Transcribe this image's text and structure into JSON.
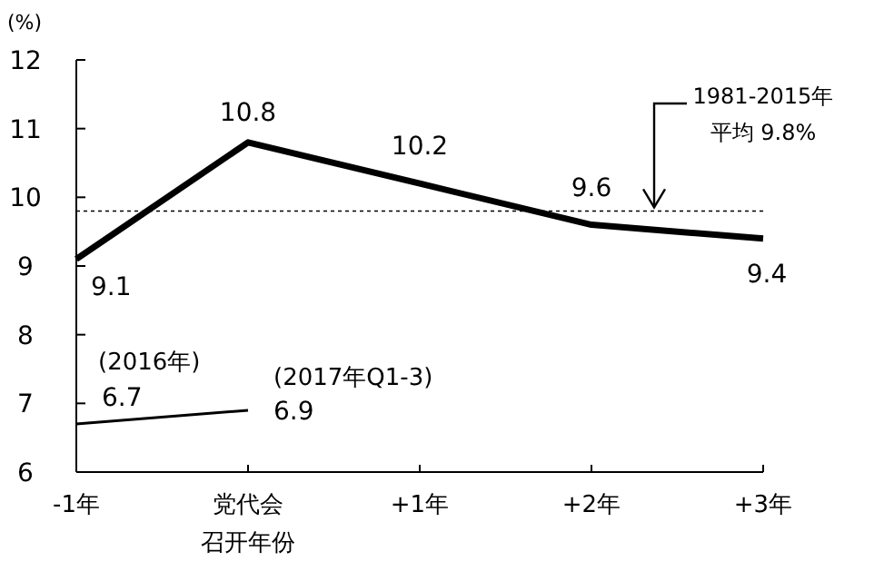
{
  "chart_data": {
    "type": "line",
    "ylabel": "(%)",
    "categories": [
      "-1年",
      "党代会召开年份",
      "+1年",
      "+2年",
      "+3年"
    ],
    "series": [
      {
        "color": "#000000",
        "values": [
          9.1,
          10.8,
          10.2,
          9.6,
          9.4
        ]
      },
      {
        "color": "#000000",
        "values": [
          6.7,
          6.9,
          null,
          null,
          null
        ]
      }
    ],
    "ylim": [
      6,
      12
    ],
    "yticks": [
      6,
      7,
      8,
      9,
      10,
      11,
      12
    ],
    "data_labels": true,
    "ref_lines": [
      {
        "axis": "y",
        "value": 9.8,
        "label": "1981-2015年平均 9.8%",
        "color": "#000000",
        "line_style": "dotted"
      }
    ],
    "annotations": [
      {
        "text": "(2016年)",
        "x": "-1年",
        "y": 6.7
      },
      {
        "text": "(2017年Q1-3)",
        "x": "党代会召开年份",
        "y": 6.9
      }
    ],
    "grid": false
  }
}
